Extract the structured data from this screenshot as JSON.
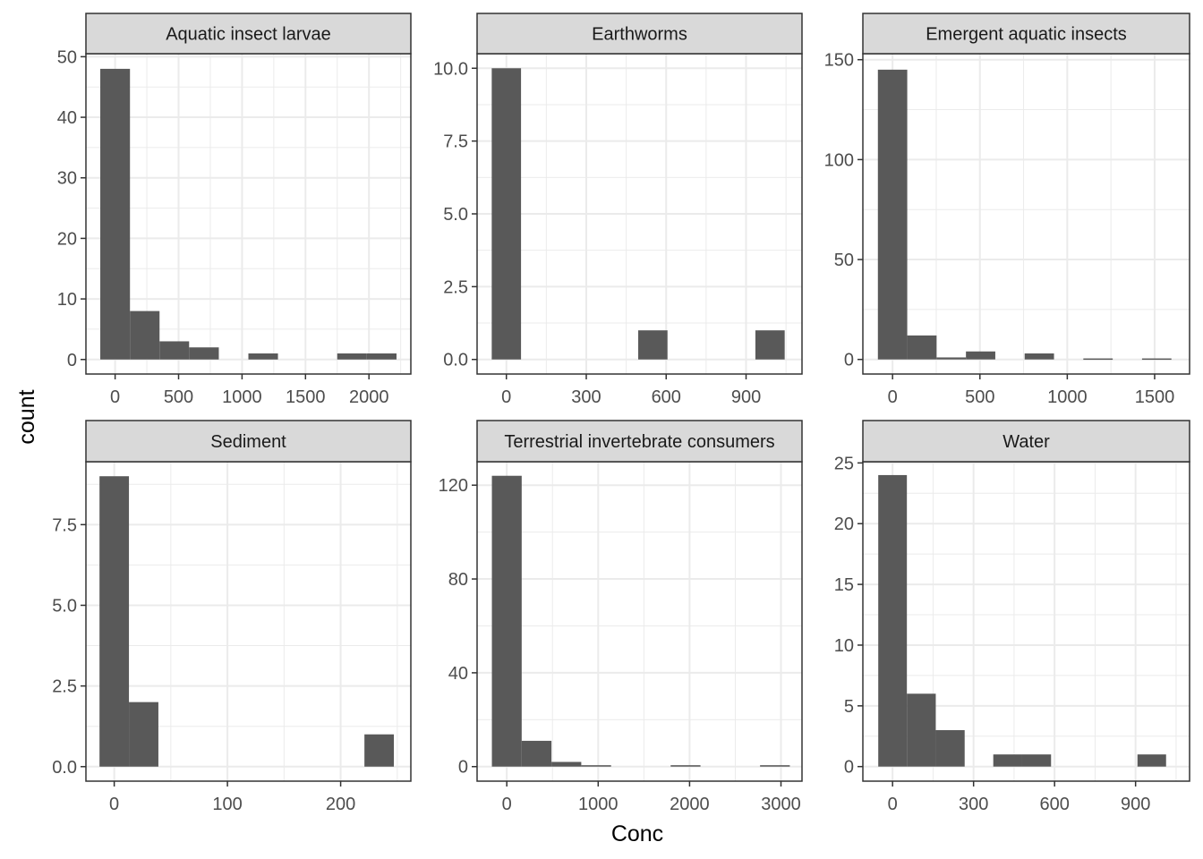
{
  "chart_data": {
    "type": "bar",
    "subtype": "faceted-histogram",
    "xlabel": "Conc",
    "ylabel": "count",
    "colors": {
      "bar": "#595959",
      "strip_bg": "#d9d9d9",
      "grid": "#ebebeb",
      "border": "#333333"
    },
    "panels": [
      {
        "title": "Aquatic insect larvae",
        "xlim": [
          -230,
          2330
        ],
        "ylim": [
          -2.4,
          50.5
        ],
        "xticks": [
          0,
          500,
          1000,
          1500,
          2000
        ],
        "xtick_labels": [
          "0",
          "500",
          "1000",
          "1500",
          "2000"
        ],
        "yticks": [
          0,
          10,
          20,
          30,
          40,
          50
        ],
        "ytick_labels": [
          "0",
          "10",
          "20",
          "30",
          "40",
          "50"
        ],
        "bins": [
          [
            -117,
            117,
            48
          ],
          [
            117,
            350,
            8
          ],
          [
            350,
            583,
            3
          ],
          [
            583,
            817,
            2
          ],
          [
            817,
            1050,
            0
          ],
          [
            1050,
            1283,
            1
          ],
          [
            1283,
            1517,
            0
          ],
          [
            1517,
            1750,
            0
          ],
          [
            1750,
            1983,
            1
          ],
          [
            1983,
            2217,
            1
          ]
        ]
      },
      {
        "title": "Earthworms",
        "xlim": [
          -110,
          1110
        ],
        "ylim": [
          -0.5,
          10.5
        ],
        "xticks": [
          0,
          300,
          600,
          900
        ],
        "xtick_labels": [
          "0",
          "300",
          "600",
          "900"
        ],
        "yticks": [
          0,
          2.5,
          5,
          7.5,
          10
        ],
        "ytick_labels": [
          "0.0",
          "2.5",
          "5.0",
          "7.5",
          "10.0"
        ],
        "bins": [
          [
            -55,
            55,
            10
          ],
          [
            55,
            165,
            0
          ],
          [
            165,
            275,
            0
          ],
          [
            275,
            385,
            0
          ],
          [
            385,
            495,
            0
          ],
          [
            495,
            605,
            1
          ],
          [
            605,
            715,
            0
          ],
          [
            715,
            825,
            0
          ],
          [
            825,
            935,
            0
          ],
          [
            935,
            1045,
            1
          ]
        ]
      },
      {
        "title": "Emergent aquatic insects",
        "xlim": [
          -170,
          1700
        ],
        "ylim": [
          -7.3,
          153
        ],
        "xticks": [
          0,
          500,
          1000,
          1500
        ],
        "xtick_labels": [
          "0",
          "500",
          "1000",
          "1500"
        ],
        "yticks": [
          0,
          50,
          100,
          150
        ],
        "ytick_labels": [
          "0",
          "50",
          "100",
          "150"
        ],
        "bins": [
          [
            -84,
            84,
            145
          ],
          [
            84,
            252,
            12
          ],
          [
            252,
            420,
            1
          ],
          [
            420,
            588,
            4
          ],
          [
            588,
            756,
            0
          ],
          [
            756,
            924,
            3
          ],
          [
            924,
            1092,
            0
          ],
          [
            1092,
            1260,
            0.5
          ],
          [
            1260,
            1428,
            0
          ],
          [
            1428,
            1596,
            0.5
          ]
        ]
      },
      {
        "title": "Sediment",
        "xlim": [
          -25,
          262
        ],
        "ylim": [
          -0.45,
          9.45
        ],
        "xticks": [
          0,
          100,
          200
        ],
        "xtick_labels": [
          "0",
          "100",
          "200"
        ],
        "yticks": [
          0,
          2.5,
          5,
          7.5
        ],
        "ytick_labels": [
          "0.0",
          "2.5",
          "5.0",
          "7.5"
        ],
        "bins": [
          [
            -13,
            13,
            9
          ],
          [
            13,
            39,
            2
          ],
          [
            39,
            65,
            0
          ],
          [
            65,
            91,
            0
          ],
          [
            91,
            117,
            0
          ],
          [
            117,
            143,
            0
          ],
          [
            143,
            169,
            0
          ],
          [
            169,
            195,
            0
          ],
          [
            195,
            221,
            0
          ],
          [
            221,
            247,
            1
          ]
        ]
      },
      {
        "title": "Terrestrial invertebrate consumers",
        "xlim": [
          -325,
          3230
        ],
        "ylim": [
          -6.2,
          130
        ],
        "xticks": [
          0,
          1000,
          2000,
          3000
        ],
        "xtick_labels": [
          "0",
          "1000",
          "2000",
          "3000"
        ],
        "yticks": [
          0,
          40,
          80,
          120
        ],
        "ytick_labels": [
          "0",
          "40",
          "80",
          "120"
        ],
        "bins": [
          [
            -163,
            163,
            124
          ],
          [
            163,
            489,
            11
          ],
          [
            489,
            815,
            2
          ],
          [
            815,
            1141,
            0.6
          ],
          [
            1141,
            1467,
            0
          ],
          [
            1467,
            1793,
            0
          ],
          [
            1793,
            2119,
            0.6
          ],
          [
            2119,
            2445,
            0
          ],
          [
            2445,
            2771,
            0
          ],
          [
            2771,
            3097,
            0.6
          ]
        ]
      },
      {
        "title": "Water",
        "xlim": [
          -110,
          1100
        ],
        "ylim": [
          -1.2,
          25.1
        ],
        "xticks": [
          0,
          300,
          600,
          900
        ],
        "xtick_labels": [
          "0",
          "300",
          "600",
          "900"
        ],
        "yticks": [
          0,
          5,
          10,
          15,
          20,
          25
        ],
        "ytick_labels": [
          "0",
          "5",
          "10",
          "15",
          "20",
          "25"
        ],
        "bins": [
          [
            -53,
            53,
            24
          ],
          [
            53,
            160,
            6
          ],
          [
            160,
            267,
            3
          ],
          [
            267,
            373,
            0
          ],
          [
            373,
            480,
            1
          ],
          [
            480,
            587,
            1
          ],
          [
            587,
            693,
            0
          ],
          [
            693,
            800,
            0
          ],
          [
            800,
            907,
            0
          ],
          [
            907,
            1013,
            1
          ]
        ]
      }
    ]
  }
}
